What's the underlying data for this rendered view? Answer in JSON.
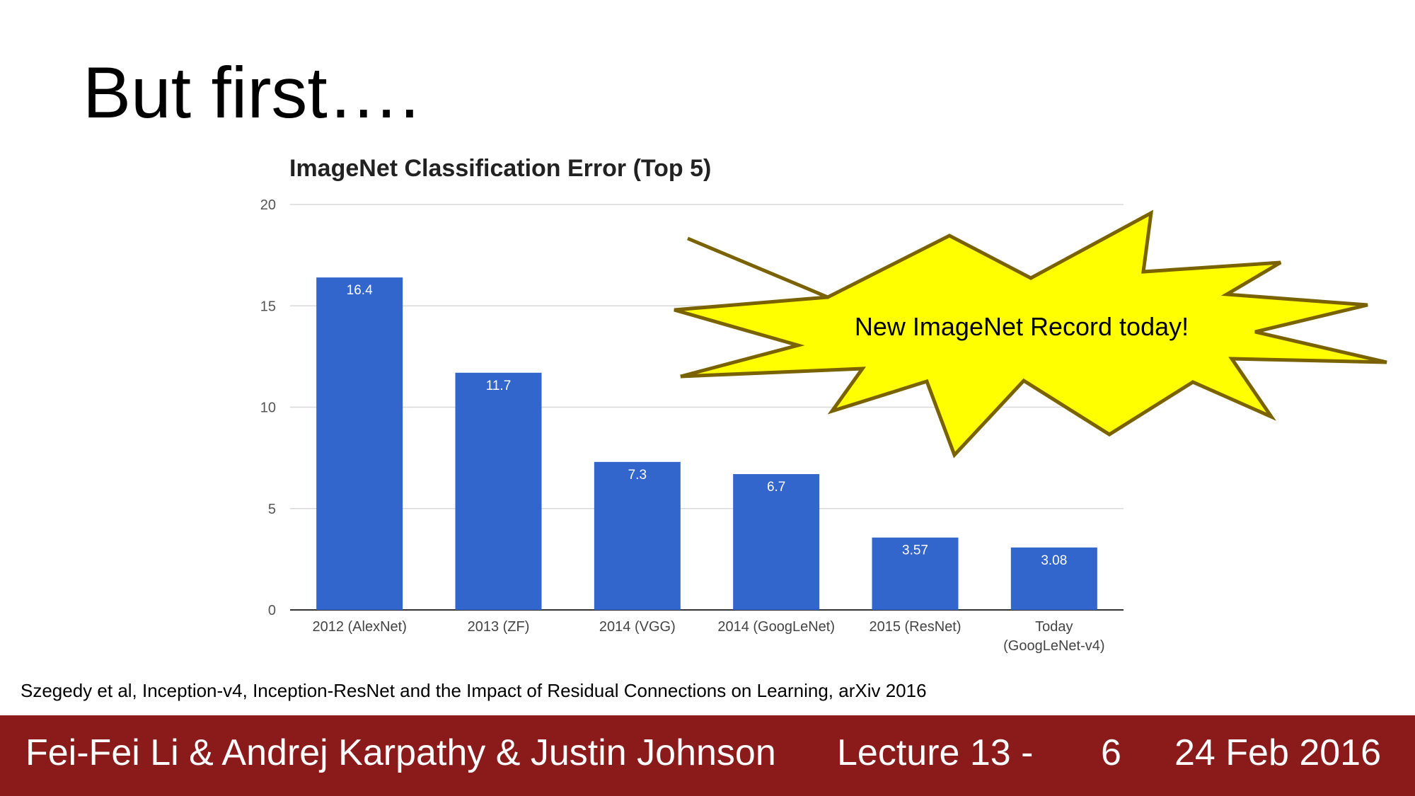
{
  "slide": {
    "title": "But first….",
    "citation": "Szegedy et al, Inception-v4, Inception-ResNet and the Impact of Residual Connections on Learning, arXiv 2016"
  },
  "footer": {
    "authors": "Fei-Fei Li & Andrej Karpathy & Justin Johnson",
    "lecture": "Lecture 13 -",
    "page": "6",
    "date": "24 Feb 2016"
  },
  "callout": {
    "text": "New ImageNet Record today!",
    "fill_color": "#ffff00",
    "stroke_color": "#7a6200"
  },
  "chart_data": {
    "type": "bar",
    "title": "ImageNet Classification Error (Top 5)",
    "xlabel": "",
    "ylabel": "",
    "categories": [
      "2012 (AlexNet)",
      "2013 (ZF)",
      "2014 (VGG)",
      "2014 (GoogLeNet)",
      "2015 (ResNet)",
      "Today (GoogLeNet-v4)"
    ],
    "values": [
      16.4,
      11.7,
      7.3,
      6.7,
      3.57,
      3.08
    ],
    "value_labels": [
      "16.4",
      "11.7",
      "7.3",
      "6.7",
      "3.57",
      "3.08"
    ],
    "ylim": [
      0,
      20
    ],
    "yticks": [
      0,
      5,
      10,
      15,
      20
    ],
    "grid": true,
    "legend": "none",
    "bar_color": "#3366cc"
  }
}
